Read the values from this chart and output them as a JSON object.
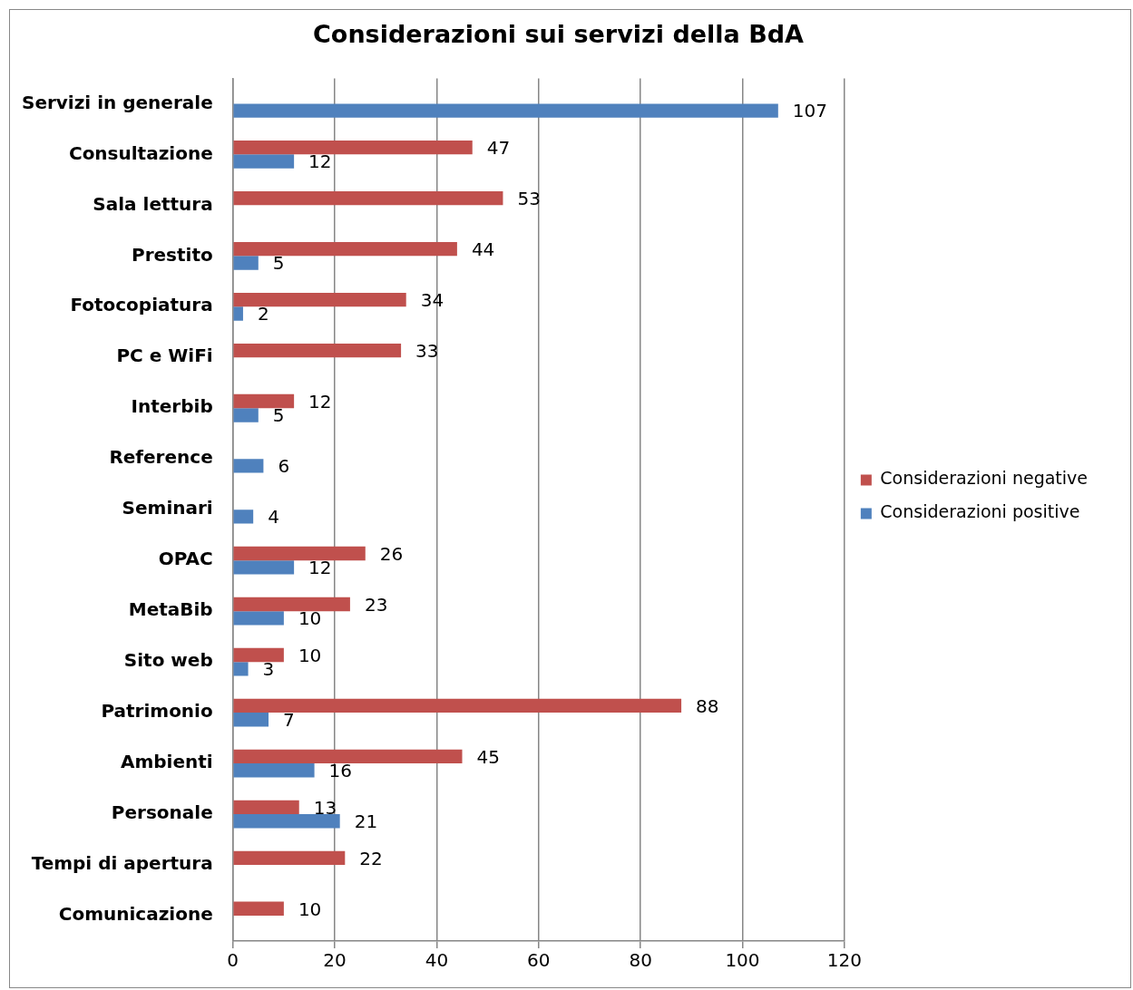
{
  "chart_data": {
    "type": "bar",
    "orientation": "horizontal",
    "title": "Considerazioni sui servizi della BdA",
    "categories": [
      "Servizi in generale",
      "Consultazione",
      "Sala lettura",
      "Prestito",
      "Fotocopiatura",
      "PC e WiFi",
      "Interbib",
      "Reference",
      "Seminari",
      "OPAC",
      "MetaBib",
      "Sito web",
      "Patrimonio",
      "Ambienti",
      "Personale",
      "Tempi di apertura",
      "Comunicazione"
    ],
    "series": [
      {
        "name": "Considerazioni negative",
        "color": "#c0504d",
        "values": [
          null,
          47,
          53,
          44,
          34,
          33,
          12,
          null,
          null,
          26,
          23,
          10,
          88,
          45,
          13,
          22,
          10
        ]
      },
      {
        "name": "Considerazioni positive",
        "color": "#4f81bd",
        "values": [
          107,
          12,
          null,
          5,
          2,
          null,
          5,
          6,
          4,
          12,
          10,
          3,
          7,
          16,
          21,
          null,
          null
        ]
      }
    ],
    "xlim": [
      0,
      120
    ],
    "xticks": [
      0,
      20,
      40,
      60,
      80,
      100,
      120
    ],
    "grid": "x",
    "legend": "right",
    "data_labels": true
  }
}
